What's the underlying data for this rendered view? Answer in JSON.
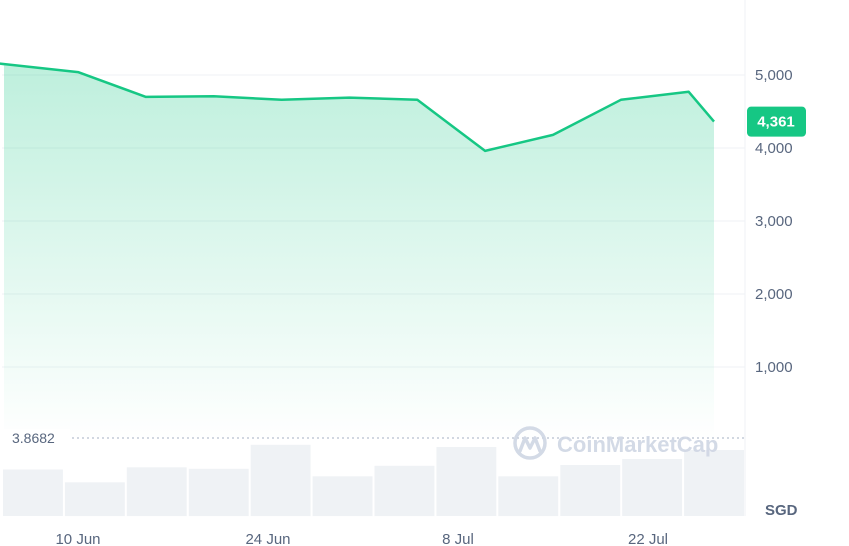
{
  "chart_data": {
    "type": "area",
    "currency": "SGD",
    "x": [
      "3 Jun",
      "4 Jun",
      "10 Jun",
      "15 Jun",
      "20 Jun",
      "25 Jun",
      "30 Jun",
      "5 Jul",
      "10 Jul",
      "15 Jul",
      "20 Jul",
      "25 Jul",
      "29 Jul"
    ],
    "values": [
      5150,
      5160,
      5040,
      4700,
      4710,
      4660,
      4690,
      4660,
      3960,
      4180,
      4660,
      4770,
      4361
    ],
    "current_value": "4,361",
    "baseline_value": "3.8682",
    "ylim": [
      0,
      5800
    ],
    "y_ticks": [
      1000,
      2000,
      3000,
      4000,
      5000
    ],
    "y_tick_labels": [
      "1,000",
      "2,000",
      "3,000",
      "4,000",
      "5,000"
    ],
    "x_tick_labels": [
      "10 Jun",
      "24 Jun",
      "8 Jul",
      "22 Jul"
    ],
    "x_tick_positions": [
      5,
      12,
      19,
      26
    ],
    "volume_values": [
      0.62,
      0.45,
      0.65,
      0.63,
      0.95,
      0.53,
      0.67,
      0.92,
      0.53,
      0.68,
      0.76,
      0.88
    ],
    "colors": {
      "line": "#16c784",
      "fill_top": "#16c784",
      "volume": "#eff2f5",
      "grid": "#eff2f5",
      "current_badge": "#16c784"
    }
  },
  "watermark": {
    "text": "CoinMarketCap",
    "icon": "coinmarketcap-logo-icon"
  }
}
